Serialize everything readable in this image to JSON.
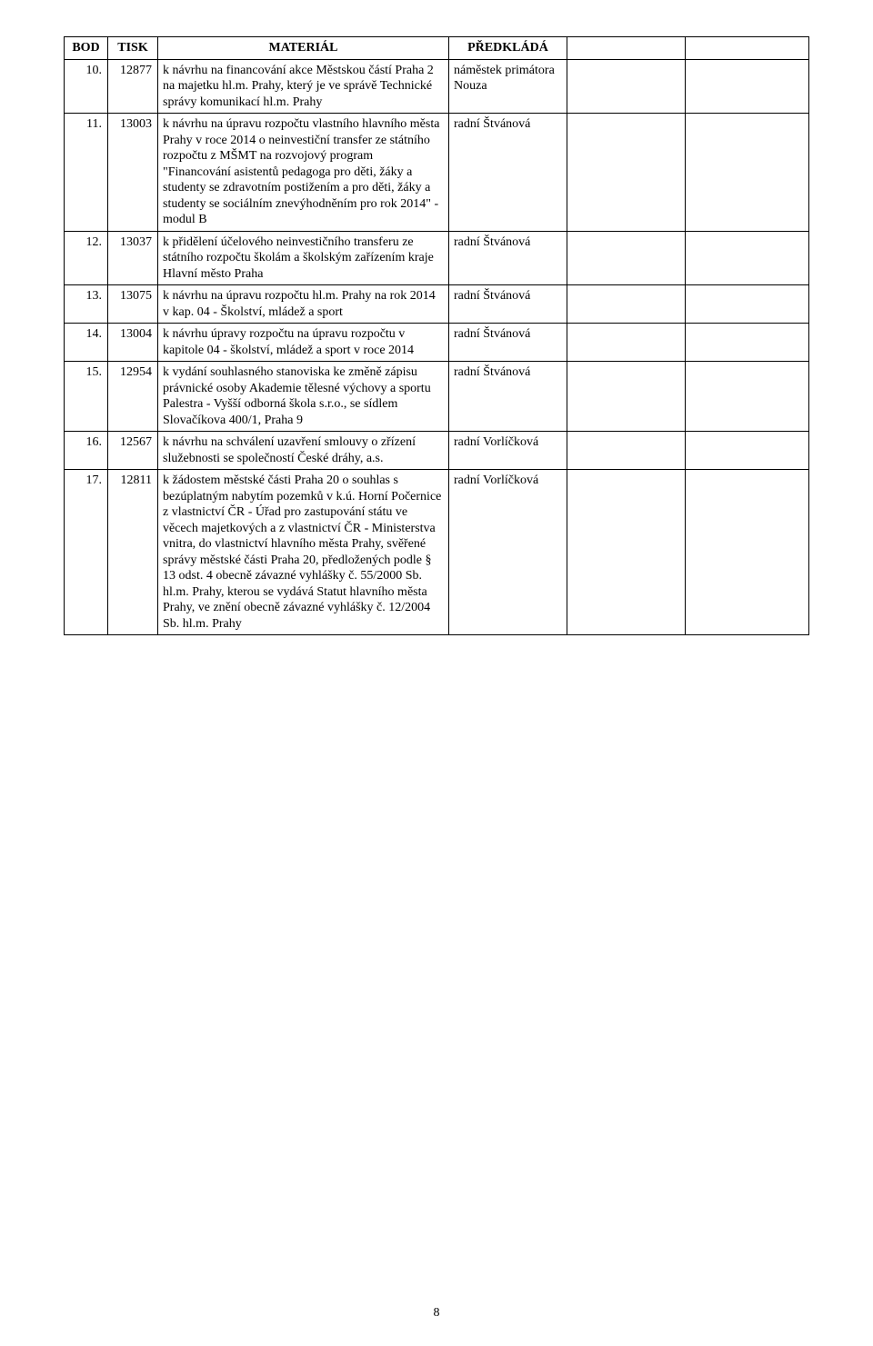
{
  "pageNumber": "8",
  "header": {
    "bod": "BOD",
    "tisk": "TISK",
    "material": "MATERIÁL",
    "predklada": "PŘEDKLÁDÁ"
  },
  "rows": [
    {
      "bod": "10.",
      "tisk": "12877",
      "material": "k návrhu na financování akce Městskou částí Praha 2 na majetku hl.m. Prahy, který je ve správě Technické správy komunikací hl.m. Prahy",
      "predklada": "náměstek primátora Nouza"
    },
    {
      "bod": "11.",
      "tisk": "13003",
      "material": "k návrhu na úpravu rozpočtu vlastního hlavního města Prahy v roce 2014 o neinvestiční transfer ze státního rozpočtu z MŠMT na rozvojový program \"Financování asistentů pedagoga pro děti, žáky a studenty se zdravotním postižením a pro děti, žáky a studenty se sociálním znevýhodněním pro rok 2014\" - modul B",
      "predklada": "radní Štvánová"
    },
    {
      "bod": "12.",
      "tisk": "13037",
      "material": "k přidělení účelového neinvestičního transferu ze státního rozpočtu školám a školským zařízením kraje Hlavní město Praha",
      "predklada": "radní Štvánová"
    },
    {
      "bod": "13.",
      "tisk": "13075",
      "material": "k návrhu na úpravu rozpočtu hl.m. Prahy na rok 2014 v kap. 04 - Školství, mládež a sport",
      "predklada": "radní Štvánová"
    },
    {
      "bod": "14.",
      "tisk": "13004",
      "material": "k návrhu úpravy rozpočtu na úpravu rozpočtu v kapitole 04 - školství, mládež a sport v roce 2014",
      "predklada": "radní Štvánová"
    },
    {
      "bod": "15.",
      "tisk": "12954",
      "material": "k vydání souhlasného stanoviska ke změně zápisu právnické osoby Akademie tělesné výchovy  a sportu Palestra - Vyšší odborná škola s.r.o., se sídlem Slovačíkova 400/1, Praha 9",
      "predklada": "radní Štvánová"
    },
    {
      "bod": "16.",
      "tisk": "12567",
      "material": "k návrhu na schválení uzavření smlouvy o zřízení služebnosti se společností České dráhy, a.s.",
      "predklada": "radní Vorlíčková"
    },
    {
      "bod": "17.",
      "tisk": "12811",
      "material": "k žádostem městské části Praha 20 o souhlas s bezúplatným nabytím pozemků v k.ú. Horní Počernice z vlastnictví ČR - Úřad pro zastupování státu ve věcech majetkových a z vlastnictví ČR - Ministerstva vnitra, do vlastnictví hlavního města Prahy, svěřené správy městské části Praha 20, předložených podle § 13 odst. 4 obecně závazné vyhlášky č. 55/2000 Sb. hl.m. Prahy, kterou se vydává Statut hlavního města Prahy, ve znění obecně závazné vyhlášky č. 12/2004 Sb. hl.m. Prahy",
      "predklada": "radní Vorlíčková"
    }
  ]
}
